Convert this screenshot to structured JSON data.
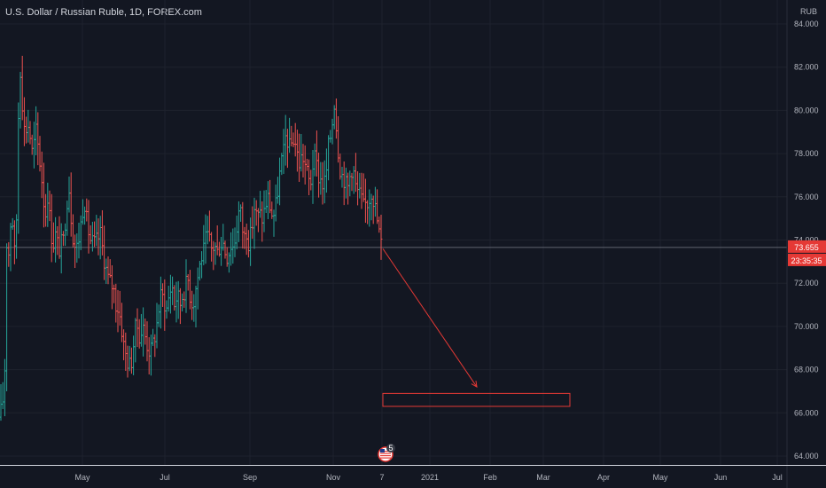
{
  "chart_data": {
    "type": "ohlc",
    "title": "U.S. Dollar / Russian Ruble, 1D, FOREX.com",
    "currency": "RUB",
    "ylim": [
      63.5,
      85.0
    ],
    "yticks": [
      "84.000",
      "82.000",
      "80.000",
      "78.000",
      "76.000",
      "74.000",
      "72.000",
      "70.000",
      "68.000",
      "66.000",
      "64.000"
    ],
    "xticks": [
      "May",
      "Jul",
      "Sep",
      "Nov",
      "7",
      "2021",
      "Feb",
      "Mar",
      "Apr",
      "May",
      "Jun",
      "Jul"
    ],
    "last_price": "73.655",
    "countdown": "23:35:35",
    "events_badge": "5",
    "colors": {
      "up": "#26a69a",
      "down": "#ef5350",
      "background": "#131722",
      "grid": "#1e222d",
      "text": "#b2b5be",
      "drawing": "#e53935"
    },
    "path": [
      [
        0,
        65.8
      ],
      [
        4,
        66.8
      ],
      [
        6,
        68.6
      ],
      [
        8,
        75.2
      ],
      [
        10,
        73.2
      ],
      [
        13,
        75.6
      ],
      [
        17,
        73.0
      ],
      [
        19,
        75.5
      ],
      [
        22,
        82.6
      ],
      [
        25,
        80.5
      ],
      [
        28,
        78.8
      ],
      [
        31,
        79.5
      ],
      [
        34,
        78.8
      ],
      [
        37,
        77.8
      ],
      [
        40,
        79.2
      ],
      [
        44,
        78.0
      ],
      [
        48,
        76.5
      ],
      [
        51,
        75.0
      ],
      [
        54,
        76.2
      ],
      [
        57,
        74.5
      ],
      [
        60,
        73.8
      ],
      [
        63,
        74.3
      ],
      [
        66,
        73.5
      ],
      [
        69,
        73.8
      ],
      [
        72,
        74.0
      ],
      [
        75,
        75.7
      ],
      [
        78,
        76.4
      ],
      [
        80,
        75.2
      ],
      [
        83,
        74.0
      ],
      [
        86,
        73.5
      ],
      [
        89,
        74.1
      ],
      [
        92,
        75.0
      ],
      [
        95,
        76.0
      ],
      [
        98,
        74.8
      ],
      [
        102,
        74.0
      ],
      [
        106,
        73.8
      ],
      [
        110,
        74.0
      ],
      [
        113,
        74.3
      ],
      [
        116,
        73.5
      ],
      [
        119,
        72.8
      ],
      [
        122,
        72.2
      ],
      [
        125,
        72.0
      ],
      [
        128,
        71.8
      ],
      [
        131,
        71.0
      ],
      [
        134,
        70.8
      ],
      [
        137,
        70.0
      ],
      [
        140,
        69.0
      ],
      [
        143,
        68.5
      ],
      [
        146,
        68.2
      ],
      [
        149,
        68.5
      ],
      [
        152,
        69.8
      ],
      [
        155,
        70.0
      ],
      [
        158,
        69.5
      ],
      [
        161,
        70.0
      ],
      [
        164,
        69.5
      ],
      [
        167,
        69.0
      ],
      [
        170,
        68.8
      ],
      [
        173,
        69.3
      ],
      [
        176,
        69.8
      ],
      [
        179,
        70.8
      ],
      [
        182,
        71.5
      ],
      [
        185,
        71.2
      ],
      [
        188,
        70.8
      ],
      [
        191,
        71.5
      ],
      [
        194,
        72.0
      ],
      [
        197,
        71.0
      ],
      [
        200,
        71.5
      ],
      [
        203,
        71.0
      ],
      [
        206,
        71.5
      ],
      [
        209,
        71.8
      ],
      [
        212,
        72.2
      ],
      [
        215,
        71.3
      ],
      [
        218,
        71.0
      ],
      [
        221,
        71.8
      ],
      [
        224,
        72.5
      ],
      [
        227,
        73.2
      ],
      [
        230,
        73.5
      ],
      [
        233,
        74.2
      ],
      [
        236,
        74.0
      ],
      [
        239,
        73.5
      ],
      [
        242,
        73.8
      ],
      [
        245,
        73.4
      ],
      [
        248,
        73.8
      ],
      [
        251,
        74.0
      ],
      [
        254,
        73.5
      ],
      [
        257,
        73.2
      ],
      [
        260,
        73.8
      ],
      [
        263,
        73.7
      ],
      [
        266,
        74.2
      ],
      [
        269,
        75.3
      ],
      [
        272,
        75.2
      ],
      [
        275,
        74.0
      ],
      [
        278,
        74.5
      ],
      [
        281,
        73.8
      ],
      [
        284,
        74.5
      ],
      [
        287,
        75.5
      ],
      [
        290,
        75.0
      ],
      [
        293,
        75.2
      ],
      [
        296,
        75.0
      ],
      [
        299,
        75.5
      ],
      [
        302,
        76.0
      ],
      [
        305,
        75.5
      ],
      [
        308,
        75.0
      ],
      [
        311,
        75.5
      ],
      [
        314,
        76.5
      ],
      [
        317,
        77.5
      ],
      [
        320,
        78.0
      ],
      [
        323,
        79.0
      ],
      [
        326,
        78.2
      ],
      [
        329,
        78.5
      ],
      [
        332,
        78.8
      ],
      [
        335,
        78.0
      ],
      [
        338,
        77.5
      ],
      [
        341,
        78.0
      ],
      [
        344,
        77.5
      ],
      [
        347,
        77.0
      ],
      [
        350,
        76.5
      ],
      [
        353,
        77.5
      ],
      [
        356,
        77.8
      ],
      [
        359,
        77.0
      ],
      [
        362,
        76.8
      ],
      [
        365,
        76.5
      ],
      [
        368,
        77.0
      ],
      [
        371,
        78.5
      ],
      [
        374,
        79.0
      ],
      [
        377,
        80.5
      ],
      [
        380,
        79.0
      ],
      [
        383,
        77.5
      ],
      [
        386,
        77.0
      ],
      [
        389,
        76.8
      ],
      [
        392,
        76.3
      ],
      [
        395,
        77.0
      ],
      [
        398,
        77.5
      ],
      [
        401,
        76.5
      ],
      [
        404,
        76.2
      ],
      [
        407,
        76.0
      ],
      [
        410,
        75.5
      ],
      [
        413,
        75.7
      ],
      [
        416,
        75.8
      ],
      [
        419,
        76.3
      ],
      [
        422,
        75.8
      ],
      [
        424,
        75.3
      ],
      [
        426,
        74.8
      ],
      [
        428,
        74.3
      ],
      [
        430,
        73.8
      ],
      [
        432,
        73.5
      ]
    ],
    "drawings": {
      "arrow": {
        "from": [
          "11-10",
          73.6
        ],
        "to": [
          "2021-01-28",
          67.2
        ]
      },
      "target_box": {
        "from": [
          "11-10",
          66.9
        ],
        "to": [
          "2021-03-10",
          66.3
        ]
      }
    }
  }
}
